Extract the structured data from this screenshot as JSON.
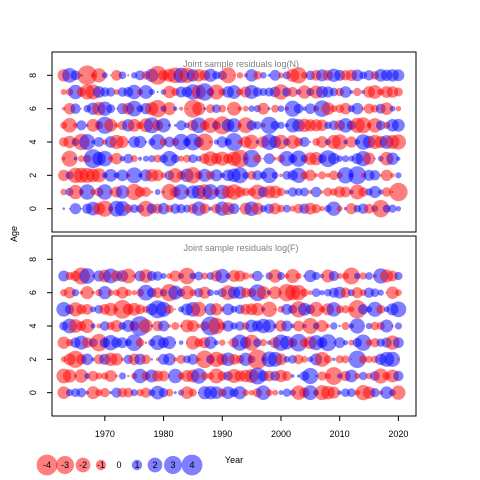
{
  "chart_data": {
    "type": "scatter",
    "ylabel": "Age",
    "xlabel": "Year",
    "colors": {
      "positive": "#0000ff",
      "negative": "#ff0000"
    },
    "xlim": [
      1961,
      2023
    ],
    "x_ticks": [
      1970,
      1980,
      1990,
      2000,
      2010,
      2020
    ],
    "legend": {
      "values": [
        -4,
        -3,
        -2,
        -1,
        0,
        1,
        2,
        3,
        4
      ],
      "labels": [
        "-4",
        "-3",
        "-2",
        "-1",
        "0",
        "1",
        "2",
        "3",
        "4"
      ]
    },
    "panels": [
      {
        "title": "Joint sample residuals log(N)",
        "ylim": [
          -1.4,
          9.4
        ],
        "y_ticks": [
          0,
          2,
          4,
          6,
          8
        ],
        "y_tick_labels": [
          "0",
          "2",
          "4",
          "6",
          "8"
        ],
        "ages": [
          0,
          1,
          2,
          3,
          4,
          5,
          6,
          7,
          8
        ],
        "years": [
          1963,
          2020
        ],
        "seed": 17
      },
      {
        "title": "Joint sample residuals log(F)",
        "ylim": [
          -1.4,
          9.4
        ],
        "y_ticks": [
          0,
          2,
          4,
          6,
          8
        ],
        "y_tick_labels": [
          "0",
          "2",
          "4",
          "6",
          "8"
        ],
        "ages": [
          0,
          1,
          2,
          3,
          4,
          5,
          6,
          7
        ],
        "years": [
          1963,
          2020
        ],
        "seed": 91
      }
    ]
  }
}
